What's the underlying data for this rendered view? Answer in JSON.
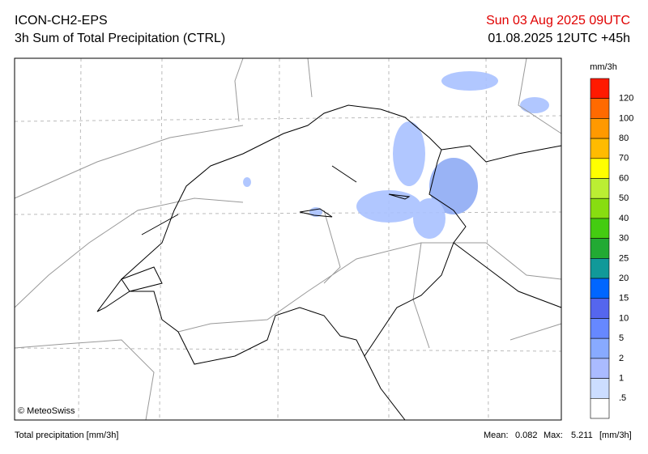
{
  "header": {
    "model": "ICON-CH2-EPS",
    "product": "3h Sum of Total Precipitation (CTRL)",
    "valid_time": "Sun 03 Aug 2025 09UTC",
    "run_time": "01.08.2025 12UTC +45h"
  },
  "legend": {
    "unit": "mm/3h",
    "labels": [
      "120",
      "100",
      "80",
      "70",
      "60",
      "50",
      "40",
      "30",
      "25",
      "20",
      "15",
      "10",
      "5",
      "2",
      "1",
      ".5"
    ],
    "colors": [
      "#ff1a00",
      "#ff6a00",
      "#ff9900",
      "#ffbb00",
      "#ffff00",
      "#bbee33",
      "#88dd11",
      "#44cc11",
      "#22aa33",
      "#119999",
      "#0066ff",
      "#5566ee",
      "#6688ff",
      "#88aaff",
      "#aabbff",
      "#ccddff",
      "#ffffff"
    ]
  },
  "credit": "© MeteoSwiss",
  "footer": {
    "left": "Total precipitation [mm/3h]",
    "mean_label": "Mean:",
    "mean": "0.082",
    "max_label": "Max:",
    "max": "5.211",
    "unit": "[mm/3h]"
  }
}
